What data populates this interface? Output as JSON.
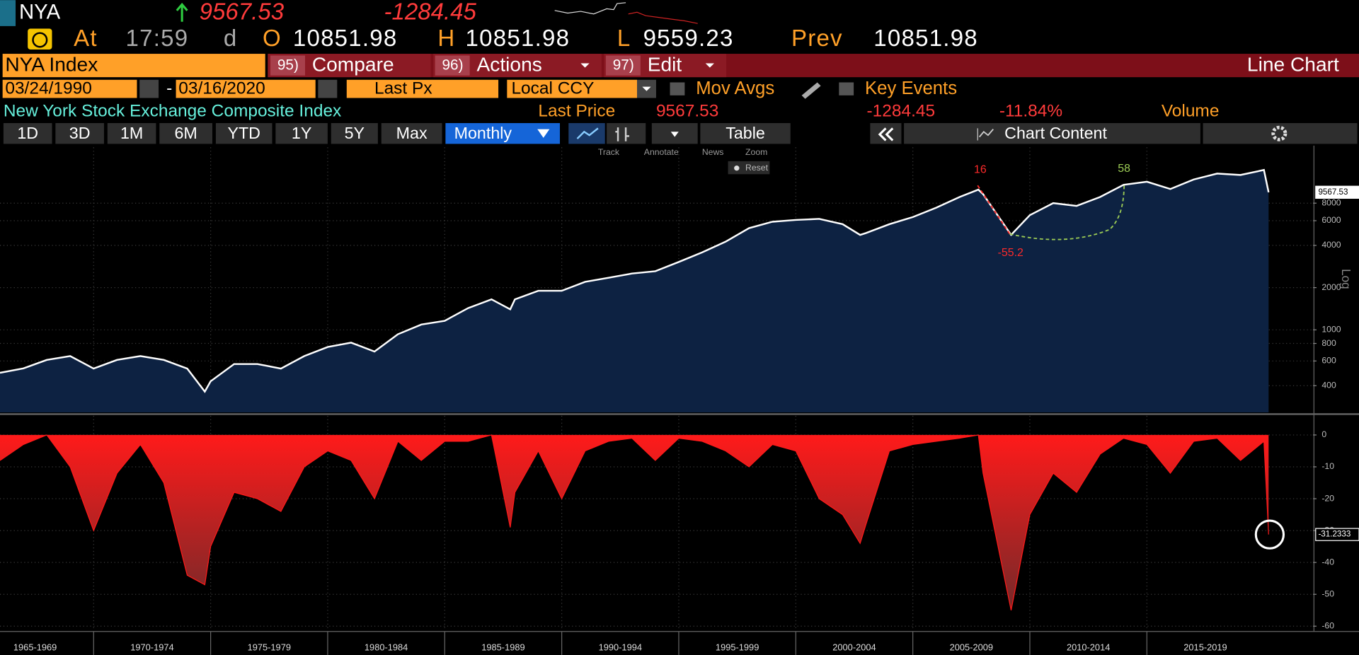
{
  "header": {
    "ticker": "NYA",
    "last": "9567.53",
    "change": "-1284.45"
  },
  "quote": {
    "at": "At",
    "time": "17:59",
    "flag": "d",
    "open_label": "O",
    "open": "10851.98",
    "high_label": "H",
    "high": "10851.98",
    "low_label": "L",
    "low": "9559.23",
    "prev_label": "Prev",
    "prev": "10851.98"
  },
  "menu": {
    "security": "NYA Index",
    "items": [
      {
        "num": "95)",
        "label": "Compare"
      },
      {
        "num": "96)",
        "label": "Actions"
      },
      {
        "num": "97)",
        "label": "Edit"
      }
    ],
    "view": "Line Chart"
  },
  "controls": {
    "start_date": "03/24/1990",
    "separator": "-",
    "end_date": "03/16/2020",
    "field": "Last Px",
    "currency": "Local CCY",
    "mov_avgs": "Mov Avgs",
    "key_events": "Key Events"
  },
  "legend": {
    "name": "New York Stock Exchange Composite Index",
    "price_label": "Last Price",
    "price": "9567.53",
    "change": "-1284.45",
    "change_pct": "-11.84%",
    "volume": "Volume"
  },
  "periods": [
    "1D",
    "3D",
    "1M",
    "6M",
    "YTD",
    "1Y",
    "5Y",
    "Max"
  ],
  "frequency": "Monthly",
  "table": "Table",
  "chart_content": "Chart Content",
  "chart_tools": [
    "Track",
    "Annotate",
    "News",
    "Zoom"
  ],
  "reset": "Reset",
  "chart_data": [
    {
      "type": "area",
      "log_scale": true,
      "grid": true,
      "color": "#ffffff",
      "fill": "#0d2242",
      "y_label": "Log",
      "annotations": [
        {
          "text": "16",
          "color": "#ff2a2a"
        },
        {
          "text": "-55.2",
          "color": "#ff2a2a"
        },
        {
          "text": "58",
          "color": "#9ccc55"
        }
      ],
      "xlim": [
        1966,
        2022.1
      ],
      "ylim": [
        258,
        20000
      ],
      "yticks": [
        400,
        600,
        800,
        1000,
        2000,
        4000,
        6000,
        8000
      ],
      "x": [
        1966,
        1967,
        1968,
        1969,
        1970,
        1971,
        1972,
        1973,
        1974,
        1974.75,
        1975,
        1976,
        1977,
        1978,
        1979,
        1980,
        1981,
        1982,
        1983,
        1984,
        1985,
        1986,
        1987,
        1987.8,
        1988,
        1989,
        1990,
        1991,
        1992,
        1993,
        1994,
        1995,
        1996,
        1997,
        1998,
        1999,
        2000,
        2001,
        2002,
        2002.75,
        2003,
        2004,
        2005,
        2006,
        2007,
        2007.8,
        2008,
        2009.2,
        2010,
        2011,
        2012,
        2013,
        2014,
        2015,
        2016,
        2017,
        2018,
        2019,
        2020,
        2020.2
      ],
      "values": [
        494,
        531,
        611,
        650,
        530,
        611,
        650,
        611,
        530,
        363,
        430,
        570,
        570,
        530,
        650,
        755,
        810,
        700,
        930,
        1090,
        1160,
        1430,
        1650,
        1400,
        1650,
        1900,
        1900,
        2200,
        2350,
        2520,
        2620,
        3050,
        3570,
        4250,
        5310,
        5900,
        6080,
        6180,
        5670,
        4750,
        4900,
        5670,
        6370,
        7420,
        8850,
        10000,
        9290,
        4750,
        6570,
        8000,
        7650,
        8850,
        10800,
        11370,
        10100,
        11800,
        13000,
        12700,
        13800,
        9567.53
      ]
    },
    {
      "type": "area",
      "grid": true,
      "color": "#ff1a1a",
      "xlim": [
        1966,
        2022.1
      ],
      "ylim": [
        -61.4,
        6
      ],
      "yticks": [
        0,
        -10,
        -20,
        -30,
        -40,
        -50,
        -60
      ],
      "xticks": [
        {
          "value": 1965,
          "label": "1965-1969"
        },
        {
          "value": 1970,
          "label": "1970-1974"
        },
        {
          "value": 1975,
          "label": "1975-1979"
        },
        {
          "value": 1980,
          "label": "1980-1984"
        },
        {
          "value": 1985,
          "label": "1985-1989"
        },
        {
          "value": 1990,
          "label": "1990-1994"
        },
        {
          "value": 1995,
          "label": "1995-1999"
        },
        {
          "value": 2000,
          "label": "2000-2004"
        },
        {
          "value": 2005,
          "label": "2005-2009"
        },
        {
          "value": 2010,
          "label": "2010-2014"
        },
        {
          "value": 2015,
          "label": "2015-2019"
        }
      ],
      "x": [
        1966,
        1967,
        1968,
        1969,
        1970,
        1971,
        1972,
        1973,
        1974,
        1974.75,
        1975,
        1976,
        1977,
        1978,
        1979,
        1980,
        1981,
        1982,
        1983,
        1984,
        1985,
        1986,
        1987,
        1987.8,
        1988,
        1989,
        1990,
        1991,
        1992,
        1993,
        1994,
        1995,
        1996,
        1997,
        1998,
        1999,
        2000,
        2001,
        2002,
        2002.75,
        2003,
        2004,
        2005,
        2006,
        2007,
        2007.8,
        2008,
        2009.2,
        2010,
        2011,
        2012,
        2013,
        2014,
        2015,
        2016,
        2017,
        2018,
        2019,
        2020,
        2020.2
      ],
      "values": [
        -8,
        -3,
        0,
        -10,
        -30,
        -12,
        -3,
        -15,
        -44,
        -47,
        -35,
        -18,
        -20,
        -24,
        -10,
        -5,
        -8,
        -20,
        -2,
        -8,
        -2,
        -2,
        0,
        -29,
        -18,
        -5,
        -20,
        -5,
        -2,
        -1,
        -8,
        -1,
        -2,
        -5,
        -10,
        -3,
        -5,
        -20,
        -25,
        -34,
        -28,
        -5,
        -3,
        -2,
        -1,
        0,
        -12,
        -55,
        -25,
        -12,
        -18,
        -6,
        -1,
        -3,
        -12,
        -2,
        -1,
        -8,
        -2,
        -31.2333
      ]
    }
  ]
}
